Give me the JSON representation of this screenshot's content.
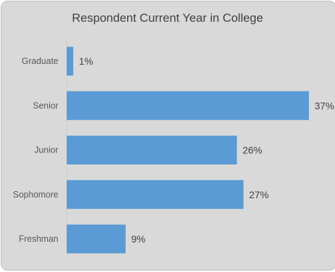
{
  "chart_data": {
    "type": "bar",
    "orientation": "horizontal",
    "title": "Respondent  Current Year in College",
    "categories": [
      "Graduate",
      "Senior",
      "Junior",
      "Sophomore",
      "Freshman"
    ],
    "values": [
      1,
      37,
      26,
      27,
      9
    ],
    "value_labels": [
      "1%",
      "37%",
      "26%",
      "27%",
      "9%"
    ],
    "xlim": [
      0,
      40
    ],
    "grid": false,
    "bar_color": "#5b9bd5",
    "background_color": "#d9d9d9"
  }
}
